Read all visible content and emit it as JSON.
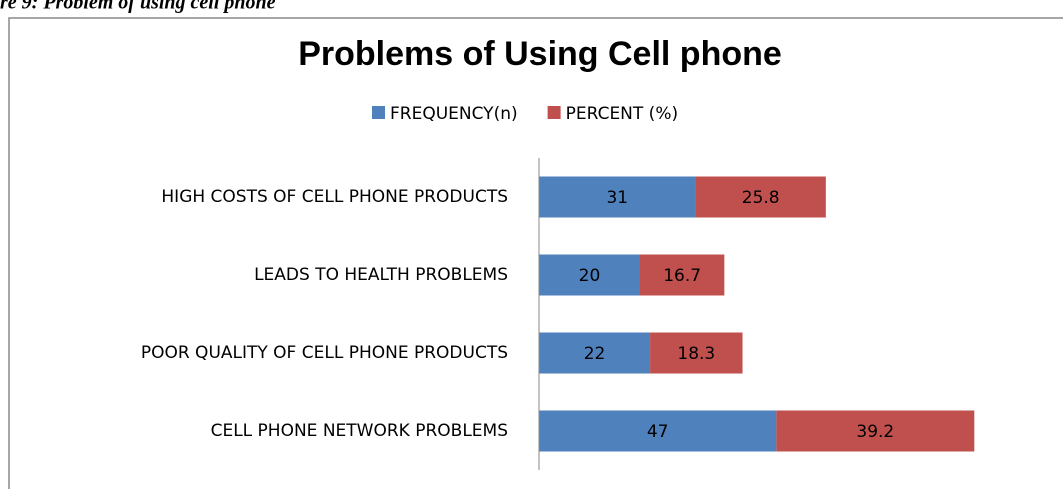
{
  "caption": "re 9: Problem of using cell phone",
  "chart_data": {
    "type": "stacked-barh",
    "title": "Problems of Using Cell phone",
    "categories": [
      "HIGH COSTS OF CELL PHONE PRODUCTS",
      "LEADS TO HEALTH PROBLEMS",
      "POOR QUALITY OF CELL PHONE PRODUCTS",
      "CELL PHONE NETWORK PROBLEMS"
    ],
    "series": [
      {
        "name": "FREQUENCY(n)",
        "color": "#4f81bd",
        "values": [
          31,
          20,
          22,
          47
        ]
      },
      {
        "name": "PERCENT (%)",
        "color": "#c0504d",
        "values": [
          25.8,
          16.7,
          18.3,
          39.2
        ]
      }
    ],
    "xlim": [
      0,
      100
    ],
    "legend": "top"
  }
}
